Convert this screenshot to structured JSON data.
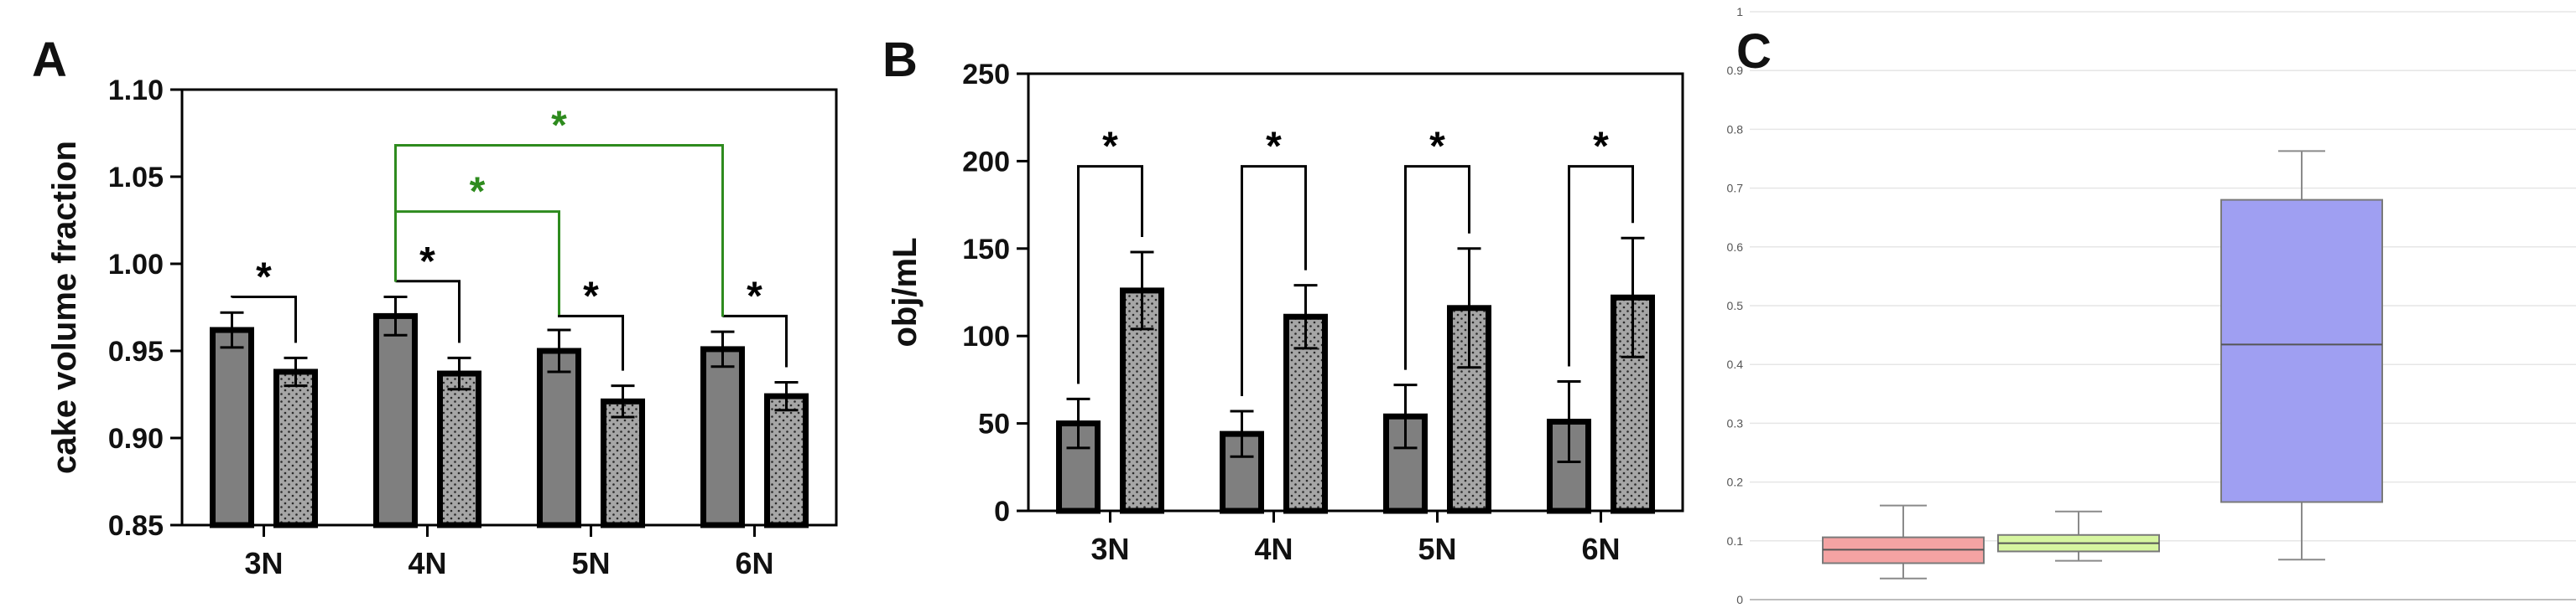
{
  "panels": {
    "A": "A",
    "B": "B",
    "C": "C"
  },
  "colors": {
    "dark_bar": "#7f7f7f",
    "dotted_bar": "#a6a6a6",
    "outline": "#000000",
    "green_bracket": "#2e8b1e",
    "box_red": "#f4a3a3",
    "box_green": "#d6f5a0",
    "box_blue": "#9f9ff2",
    "grid_c": "#e6e6e6"
  },
  "chart_data": [
    {
      "type": "bar",
      "panel": "A",
      "title": "",
      "xlabel": "",
      "ylabel": "cake volume fraction",
      "ylim": [
        0.85,
        1.1
      ],
      "yticks": [
        0.85,
        0.9,
        0.95,
        1.0,
        1.05,
        1.1
      ],
      "ytick_labels": [
        "0.85",
        "0.90",
        "0.95",
        "1.00",
        "1.05",
        "1.10"
      ],
      "categories": [
        "3N",
        "4N",
        "5N",
        "6N"
      ],
      "series": [
        {
          "fill": "solid",
          "values": [
            0.962,
            0.97,
            0.95,
            0.951
          ],
          "errors": [
            0.01,
            0.011,
            0.012,
            0.01
          ]
        },
        {
          "fill": "dotted",
          "values": [
            0.938,
            0.937,
            0.921,
            0.924
          ],
          "errors": [
            0.008,
            0.009,
            0.009,
            0.008
          ]
        }
      ],
      "annotations": [
        {
          "text": "*",
          "color": "black",
          "from": [
            0,
            0
          ],
          "to": [
            0,
            1
          ],
          "level": 0.981
        },
        {
          "text": "*",
          "color": "black",
          "from": [
            1,
            0
          ],
          "to": [
            1,
            1
          ],
          "level": 0.99
        },
        {
          "text": "*",
          "color": "black",
          "from": [
            2,
            0
          ],
          "to": [
            2,
            1
          ],
          "level": 0.97
        },
        {
          "text": "*",
          "color": "black",
          "from": [
            3,
            0
          ],
          "to": [
            3,
            1
          ],
          "level": 0.97
        },
        {
          "text": "*",
          "color": "green",
          "from": [
            1,
            0
          ],
          "to": [
            2,
            0
          ],
          "level": 1.03
        },
        {
          "text": "*",
          "color": "green",
          "from": [
            1,
            0
          ],
          "to": [
            3,
            0
          ],
          "level": 1.068
        }
      ]
    },
    {
      "type": "bar",
      "panel": "B",
      "title": "",
      "xlabel": "",
      "ylabel": "obj/mL",
      "ylim": [
        0,
        250
      ],
      "yticks": [
        0,
        50,
        100,
        150,
        200,
        250
      ],
      "ytick_labels": [
        "0",
        "50",
        "100",
        "150",
        "200",
        "250"
      ],
      "categories": [
        "3N",
        "4N",
        "5N",
        "6N"
      ],
      "series": [
        {
          "fill": "solid",
          "values": [
            50,
            44,
            54,
            51
          ],
          "errors": [
            14,
            13,
            18,
            23
          ]
        },
        {
          "fill": "dotted",
          "values": [
            126,
            111,
            116,
            122
          ],
          "errors": [
            22,
            18,
            34,
            34
          ]
        }
      ],
      "annotations": [
        {
          "text": "*",
          "color": "black",
          "from": [
            0,
            0
          ],
          "to": [
            0,
            1
          ],
          "level": 197
        },
        {
          "text": "*",
          "color": "black",
          "from": [
            1,
            0
          ],
          "to": [
            1,
            1
          ],
          "level": 197
        },
        {
          "text": "*",
          "color": "black",
          "from": [
            2,
            0
          ],
          "to": [
            2,
            1
          ],
          "level": 197
        },
        {
          "text": "*",
          "color": "black",
          "from": [
            3,
            0
          ],
          "to": [
            3,
            1
          ],
          "level": 197
        }
      ]
    },
    {
      "type": "box",
      "panel": "C",
      "title": "",
      "xlabel": "",
      "ylabel": "",
      "ylim": [
        0,
        1
      ],
      "yticks": [
        0,
        0.1,
        0.2,
        0.3,
        0.4,
        0.5,
        0.6,
        0.7,
        0.8,
        0.9,
        1
      ],
      "ytick_labels": [
        "0",
        "0.1",
        "0.2",
        "0.3",
        "0.4",
        "0.5",
        "0.6",
        "0.7",
        "0.8",
        "0.9",
        "1"
      ],
      "grid": true,
      "boxes": [
        {
          "color": "red",
          "min": 0.036,
          "q1": 0.062,
          "median": 0.085,
          "q3": 0.106,
          "max": 0.16
        },
        {
          "color": "green",
          "min": 0.066,
          "q1": 0.082,
          "median": 0.096,
          "q3": 0.11,
          "max": 0.15
        },
        {
          "color": "blue",
          "min": 0.068,
          "q1": 0.166,
          "median": 0.434,
          "q3": 0.68,
          "max": 0.763
        }
      ]
    }
  ]
}
